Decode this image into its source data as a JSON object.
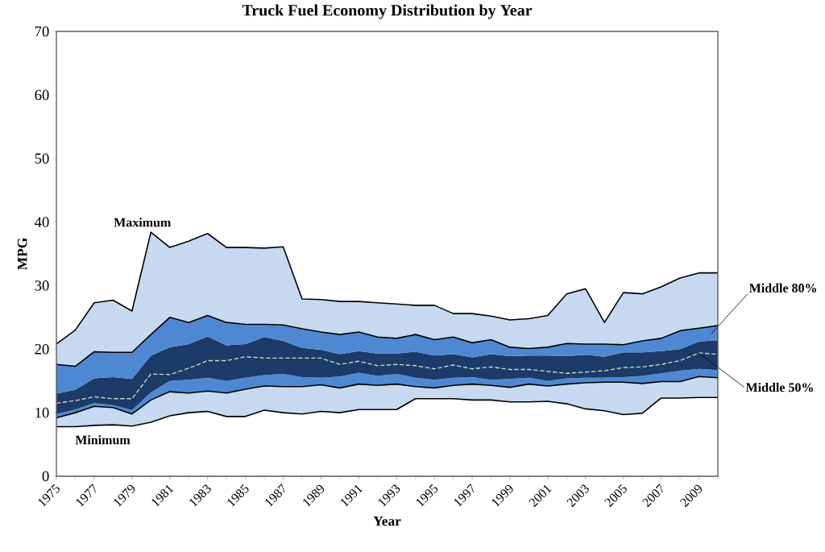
{
  "chart_data": {
    "type": "area",
    "stacked": true,
    "title": "Truck Fuel Economy Distribution by Year",
    "xlabel": "Year",
    "ylabel": "MPG",
    "x": [
      1975,
      1976,
      1977,
      1978,
      1979,
      1980,
      1981,
      1982,
      1983,
      1984,
      1985,
      1986,
      1987,
      1988,
      1989,
      1990,
      1991,
      1992,
      1993,
      1994,
      1995,
      1996,
      1997,
      1998,
      1999,
      2000,
      2001,
      2002,
      2003,
      2004,
      2005,
      2006,
      2007,
      2008,
      2009,
      2010
    ],
    "xlim": [
      1975,
      2010
    ],
    "xticks": [
      1975,
      1977,
      1979,
      1981,
      1983,
      1985,
      1987,
      1989,
      1991,
      1993,
      1995,
      1997,
      1999,
      2001,
      2003,
      2005,
      2007,
      2009
    ],
    "ylim": [
      0,
      70
    ],
    "yticks": [
      0,
      10,
      20,
      30,
      40,
      50,
      60,
      70
    ],
    "grid": false,
    "series": [
      {
        "color": "#ffffff",
        "line_style": "solid",
        "values": [
          7.8,
          7.8,
          8,
          8.1,
          7.9,
          8.5,
          9.5,
          10,
          10.2,
          9.4,
          9.4,
          10.4,
          10,
          9.8,
          10.2,
          10,
          10.5,
          10.5,
          10.5,
          12.2,
          12.2,
          12.2,
          12,
          12,
          11.7,
          11.7,
          11.8,
          11.4,
          10.6,
          10.3,
          9.7,
          9.9,
          12.3,
          12.3,
          12.4,
          12.4
        ]
      },
      {
        "color": "#c6d9f0",
        "line_style": "solid",
        "values": [
          1.4,
          2.2,
          3,
          2.7,
          1.9,
          3.5,
          3.8,
          3.1,
          3.2,
          3.7,
          4.3,
          3.8,
          4.1,
          4.3,
          4.2,
          3.9,
          4,
          3.8,
          4,
          1.9,
          1.7,
          2.1,
          2.5,
          2.3,
          2.3,
          2.8,
          2.4,
          3.1,
          4.1,
          4.5,
          5.1,
          4.7,
          2.6,
          2.6,
          3.3,
          3.1
        ]
      },
      {
        "color": "#4f88d2",
        "values": [
          0.6,
          0.5,
          0.5,
          0.4,
          0.6,
          1.2,
          1.7,
          2.1,
          2.1,
          1.9,
          1.8,
          1.7,
          2,
          1.5,
          1.1,
          1.8,
          1.8,
          1.5,
          1.6,
          1.4,
          1.3,
          1.2,
          1.1,
          0.9,
          1.3,
          1.0,
          0.8,
          0.9,
          0.8,
          0.7,
          0.8,
          1.2,
          1.3,
          1.7,
          1.2,
          1.2
        ]
      },
      {
        "color": "#1c3b69",
        "values": [
          3.2,
          3.1,
          3.9,
          4.4,
          4.9,
          5.8,
          5.3,
          5.6,
          6.5,
          5.6,
          5.3,
          6,
          5.2,
          4.6,
          4.4,
          3.5,
          3.4,
          3.5,
          3.2,
          4.1,
          3.8,
          3.7,
          3.1,
          4,
          3.6,
          3.5,
          4,
          3.5,
          3.6,
          3.3,
          3.9,
          3.7,
          3.5,
          3.4,
          4.3,
          4.7
        ]
      },
      {
        "color": "#4f88d2",
        "line_style": "solid",
        "values": [
          4.6,
          3.7,
          4.2,
          3.9,
          4.2,
          3.3,
          4.7,
          3.4,
          3.3,
          3.6,
          3.1,
          2,
          2.5,
          3,
          2.8,
          3.1,
          3,
          2.6,
          2.4,
          2.7,
          2.5,
          2.7,
          2.3,
          2.3,
          1.4,
          1.1,
          1.3,
          2,
          1.7,
          2,
          1.2,
          1.8,
          2,
          2.9,
          2.1,
          2.3
        ]
      },
      {
        "color": "#c6d9f0",
        "line_style": "solid",
        "values": [
          3.2,
          5.7,
          7.7,
          8.2,
          6.5,
          16.1,
          11,
          12.8,
          12.9,
          11.8,
          12.1,
          12,
          12.3,
          4.7,
          5.1,
          5.2,
          4.8,
          5.4,
          5.4,
          4.6,
          5.4,
          3.7,
          4.6,
          3.7,
          4.3,
          4.7,
          5,
          7.8,
          8.7,
          3.4,
          8.2,
          7.4,
          8.1,
          8.3,
          8.7,
          8.3
        ]
      },
      {
        "type": "line",
        "color": "#c8d8c8",
        "line_style": "dashed",
        "values": [
          11.5,
          11.9,
          12.5,
          12.2,
          12.2,
          16.1,
          16,
          17,
          18.2,
          18.2,
          18.8,
          18.6,
          18.6,
          18.6,
          18.6,
          17.6,
          18.1,
          17.4,
          17.6,
          17.4,
          16.9,
          17.5,
          16.9,
          17.2,
          16.8,
          16.8,
          16.5,
          16.2,
          16.4,
          16.6,
          17.1,
          17.2,
          17.6,
          18.2,
          19.4,
          19.2
        ]
      }
    ],
    "annotations": [
      "Maximum",
      "Minimum",
      "Middle 80%",
      {
        "text": "Middle 50%",
        "x": 2009,
        "y": 19.4
      }
    ]
  }
}
